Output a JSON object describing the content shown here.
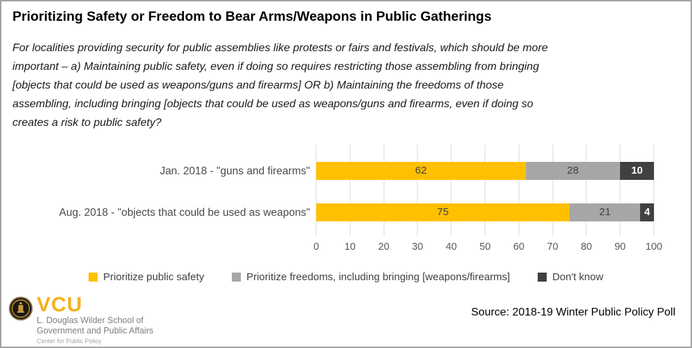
{
  "title": "Prioritizing Safety or Freedom to Bear Arms/Weapons in Public Gatherings",
  "subtitle_lines": [
    "For localities providing security for public assemblies like protests or fairs and festivals, which should be more",
    "important – a) Maintaining public safety, even if doing so requires restricting those assembling from bringing",
    "[objects that could be used as weapons/guns and firearms] OR b) Maintaining the freedoms of those",
    "assembling, including bringing [objects that could be used as weapons/guns and firearms, even if doing so",
    "creates a risk to public safety?"
  ],
  "chart_data": {
    "type": "bar",
    "orientation": "horizontal",
    "stacked": true,
    "title": "Prioritizing Safety or Freedom to Bear Arms/Weapons in Public Gatherings",
    "categories": [
      "Jan. 2018 - \"guns and firearms\"",
      "Aug. 2018 - \"objects that could be used as weapons\""
    ],
    "series": [
      {
        "name": "Prioritize public safety",
        "values": [
          62,
          75
        ],
        "color": "#FFC000",
        "value_text_color": "#404040",
        "value_bold": false
      },
      {
        "name": "Prioritize freedoms, including bringing [weapons/firearms]",
        "values": [
          28,
          21
        ],
        "color": "#A6A6A6",
        "value_text_color": "#404040",
        "value_bold": false
      },
      {
        "name": "Don't know",
        "values": [
          10,
          4
        ],
        "color": "#404040",
        "value_text_color": "#FFFFFF",
        "value_bold": true
      }
    ],
    "xlim": [
      0,
      100
    ],
    "x_ticks": [
      0,
      10,
      20,
      30,
      40,
      50,
      60,
      70,
      80,
      90,
      100
    ],
    "grid": true,
    "gridline_color": "#D9D9D9",
    "legend_position": "bottom"
  },
  "footer": {
    "logo": {
      "brand": "VCU",
      "school_line1": "L. Douglas Wilder School of",
      "school_line2": "Government and Public Affairs",
      "center_line": "Center for Public Policy"
    },
    "source": "Source: 2018-19 Winter Public Policy Poll"
  },
  "colors": {
    "gold": "#FFC000",
    "gray": "#A6A6A6",
    "dark_gray": "#404040",
    "vcu_gold": "#F5B01B"
  }
}
